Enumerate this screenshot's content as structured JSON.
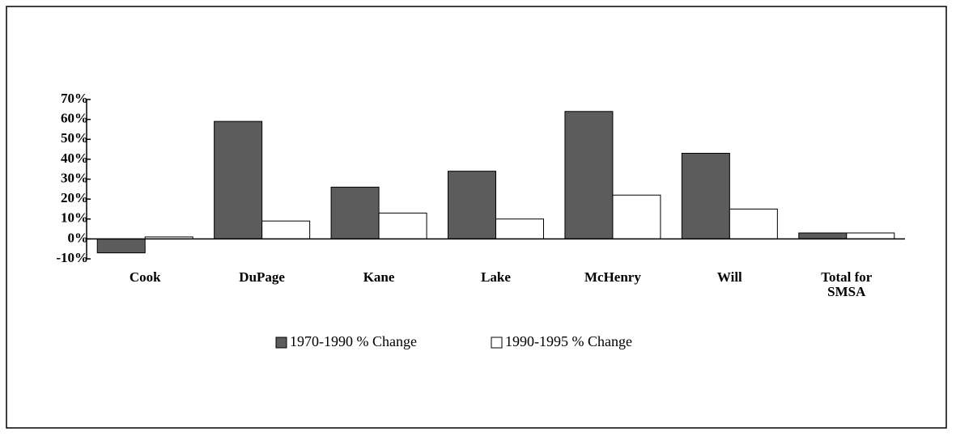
{
  "chart_data": {
    "type": "bar",
    "categories": [
      "Cook",
      "DuPage",
      "Kane",
      "Lake",
      "McHenry",
      "Will",
      "Total for SMSA"
    ],
    "series": [
      {
        "name": "1970-1990 % Change",
        "color": "#5c5c5c",
        "values": [
          -7,
          59,
          26,
          34,
          64,
          43,
          3
        ]
      },
      {
        "name": "1990-1995 % Change",
        "color": "#ffffff",
        "values": [
          1,
          9,
          13,
          10,
          22,
          15,
          3
        ]
      }
    ],
    "ylim": [
      -10,
      70
    ],
    "yticks": [
      {
        "value": -10,
        "label": "-10%"
      },
      {
        "value": 0,
        "label": "0%"
      },
      {
        "value": 10,
        "label": "10%"
      },
      {
        "value": 20,
        "label": "20%"
      },
      {
        "value": 30,
        "label": "30%"
      },
      {
        "value": 40,
        "label": "40%"
      },
      {
        "value": 50,
        "label": "50%"
      },
      {
        "value": 60,
        "label": "60%"
      },
      {
        "value": 70,
        "label": "70%"
      }
    ],
    "grid": false
  }
}
